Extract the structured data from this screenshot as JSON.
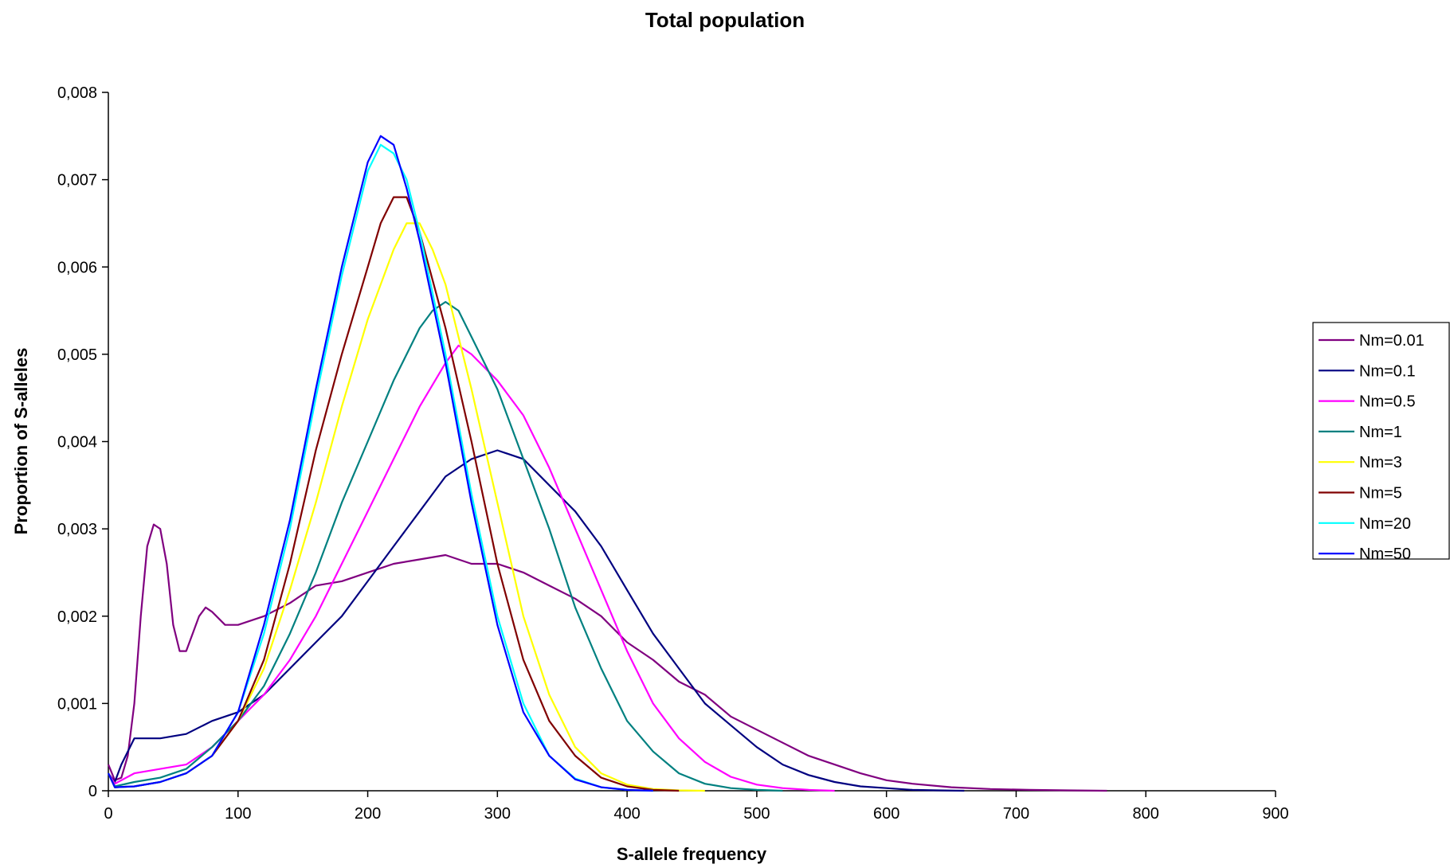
{
  "chart_data": {
    "type": "line",
    "title": "Total population",
    "xlabel": "S-allele frequency",
    "ylabel": "Proportion of S-alleles",
    "xlim": [
      0,
      900
    ],
    "ylim": [
      0,
      0.008
    ],
    "x_ticks": [
      0,
      100,
      200,
      300,
      400,
      500,
      600,
      700,
      800,
      900
    ],
    "x_tick_labels": [
      "0",
      "100",
      "200",
      "300",
      "400",
      "500",
      "600",
      "700",
      "800",
      "900"
    ],
    "y_ticks": [
      0,
      0.001,
      0.002,
      0.003,
      0.004,
      0.005,
      0.006,
      0.007,
      0.008
    ],
    "y_tick_labels": [
      "0",
      "0,001",
      "0,002",
      "0,003",
      "0,004",
      "0,005",
      "0,006",
      "0,007",
      "0,008"
    ],
    "grid": false,
    "legend_position": "right",
    "series": [
      {
        "name": "Nm=0.01",
        "color": "#800080",
        "points": [
          [
            0,
            0.0003
          ],
          [
            5,
            0.00012
          ],
          [
            10,
            0.00015
          ],
          [
            15,
            0.0004
          ],
          [
            20,
            0.001
          ],
          [
            25,
            0.002
          ],
          [
            30,
            0.0028
          ],
          [
            35,
            0.00305
          ],
          [
            40,
            0.003
          ],
          [
            45,
            0.0026
          ],
          [
            50,
            0.0019
          ],
          [
            55,
            0.0016
          ],
          [
            60,
            0.0016
          ],
          [
            65,
            0.0018
          ],
          [
            70,
            0.002
          ],
          [
            75,
            0.0021
          ],
          [
            80,
            0.00205
          ],
          [
            90,
            0.0019
          ],
          [
            100,
            0.0019
          ],
          [
            120,
            0.002
          ],
          [
            140,
            0.00215
          ],
          [
            160,
            0.00235
          ],
          [
            180,
            0.0024
          ],
          [
            200,
            0.0025
          ],
          [
            220,
            0.0026
          ],
          [
            240,
            0.00265
          ],
          [
            260,
            0.0027
          ],
          [
            280,
            0.0026
          ],
          [
            300,
            0.0026
          ],
          [
            320,
            0.0025
          ],
          [
            340,
            0.00235
          ],
          [
            360,
            0.0022
          ],
          [
            380,
            0.002
          ],
          [
            400,
            0.0017
          ],
          [
            420,
            0.0015
          ],
          [
            440,
            0.00125
          ],
          [
            460,
            0.0011
          ],
          [
            480,
            0.00085
          ],
          [
            500,
            0.0007
          ],
          [
            520,
            0.00055
          ],
          [
            540,
            0.0004
          ],
          [
            560,
            0.0003
          ],
          [
            580,
            0.0002
          ],
          [
            600,
            0.00012
          ],
          [
            620,
            8e-05
          ],
          [
            650,
            4e-05
          ],
          [
            680,
            2e-05
          ],
          [
            710,
            1e-05
          ],
          [
            740,
            5e-06
          ],
          [
            770,
            0
          ]
        ]
      },
      {
        "name": "Nm=0.1",
        "color": "#000080",
        "points": [
          [
            0,
            0.0002
          ],
          [
            5,
            0.0001
          ],
          [
            10,
            0.0003
          ],
          [
            20,
            0.0006
          ],
          [
            30,
            0.0006
          ],
          [
            40,
            0.0006
          ],
          [
            60,
            0.00065
          ],
          [
            80,
            0.0008
          ],
          [
            100,
            0.0009
          ],
          [
            120,
            0.0011
          ],
          [
            140,
            0.0014
          ],
          [
            160,
            0.0017
          ],
          [
            180,
            0.002
          ],
          [
            200,
            0.0024
          ],
          [
            220,
            0.0028
          ],
          [
            240,
            0.0032
          ],
          [
            260,
            0.0036
          ],
          [
            280,
            0.0038
          ],
          [
            300,
            0.0039
          ],
          [
            320,
            0.0038
          ],
          [
            340,
            0.0035
          ],
          [
            360,
            0.0032
          ],
          [
            380,
            0.0028
          ],
          [
            400,
            0.0023
          ],
          [
            420,
            0.0018
          ],
          [
            440,
            0.0014
          ],
          [
            460,
            0.001
          ],
          [
            480,
            0.00075
          ],
          [
            500,
            0.0005
          ],
          [
            520,
            0.0003
          ],
          [
            540,
            0.00018
          ],
          [
            560,
            0.0001
          ],
          [
            580,
            5e-05
          ],
          [
            600,
            3e-05
          ],
          [
            620,
            1e-05
          ],
          [
            640,
            5e-06
          ],
          [
            660,
            0
          ]
        ]
      },
      {
        "name": "Nm=0.5",
        "color": "#ff00ff",
        "points": [
          [
            0,
            0.0002
          ],
          [
            5,
            8e-05
          ],
          [
            20,
            0.0002
          ],
          [
            40,
            0.00025
          ],
          [
            60,
            0.0003
          ],
          [
            80,
            0.0005
          ],
          [
            100,
            0.0008
          ],
          [
            120,
            0.0011
          ],
          [
            140,
            0.0015
          ],
          [
            160,
            0.002
          ],
          [
            180,
            0.0026
          ],
          [
            200,
            0.0032
          ],
          [
            220,
            0.0038
          ],
          [
            240,
            0.0044
          ],
          [
            260,
            0.0049
          ],
          [
            270,
            0.0051
          ],
          [
            280,
            0.005
          ],
          [
            300,
            0.0047
          ],
          [
            320,
            0.0043
          ],
          [
            340,
            0.0037
          ],
          [
            360,
            0.003
          ],
          [
            380,
            0.0023
          ],
          [
            400,
            0.0016
          ],
          [
            420,
            0.001
          ],
          [
            440,
            0.0006
          ],
          [
            460,
            0.00033
          ],
          [
            480,
            0.00016
          ],
          [
            500,
            7e-05
          ],
          [
            520,
            3e-05
          ],
          [
            540,
            1e-05
          ],
          [
            560,
            0
          ]
        ]
      },
      {
        "name": "Nm=1",
        "color": "#008080",
        "points": [
          [
            0,
            0.0002
          ],
          [
            5,
            5e-05
          ],
          [
            20,
            0.0001
          ],
          [
            40,
            0.00015
          ],
          [
            60,
            0.00025
          ],
          [
            80,
            0.0005
          ],
          [
            100,
            0.0008
          ],
          [
            120,
            0.0012
          ],
          [
            140,
            0.0018
          ],
          [
            160,
            0.0025
          ],
          [
            180,
            0.0033
          ],
          [
            200,
            0.004
          ],
          [
            220,
            0.0047
          ],
          [
            240,
            0.0053
          ],
          [
            250,
            0.0055
          ],
          [
            260,
            0.0056
          ],
          [
            270,
            0.0055
          ],
          [
            280,
            0.0052
          ],
          [
            300,
            0.0046
          ],
          [
            320,
            0.0038
          ],
          [
            340,
            0.003
          ],
          [
            360,
            0.0021
          ],
          [
            380,
            0.0014
          ],
          [
            400,
            0.0008
          ],
          [
            420,
            0.00045
          ],
          [
            440,
            0.0002
          ],
          [
            460,
            8e-05
          ],
          [
            480,
            3e-05
          ],
          [
            500,
            1e-05
          ],
          [
            520,
            0
          ]
        ]
      },
      {
        "name": "Nm=3",
        "color": "#ffff00",
        "points": [
          [
            0,
            0.0002
          ],
          [
            5,
            4e-05
          ],
          [
            20,
            5e-05
          ],
          [
            40,
            0.0001
          ],
          [
            60,
            0.0002
          ],
          [
            80,
            0.0004
          ],
          [
            100,
            0.0008
          ],
          [
            120,
            0.0014
          ],
          [
            140,
            0.0023
          ],
          [
            160,
            0.0033
          ],
          [
            180,
            0.0044
          ],
          [
            200,
            0.0054
          ],
          [
            220,
            0.0062
          ],
          [
            230,
            0.0065
          ],
          [
            240,
            0.0065
          ],
          [
            250,
            0.0062
          ],
          [
            260,
            0.0058
          ],
          [
            280,
            0.0046
          ],
          [
            300,
            0.0033
          ],
          [
            320,
            0.002
          ],
          [
            340,
            0.0011
          ],
          [
            360,
            0.0005
          ],
          [
            380,
            0.0002
          ],
          [
            400,
            7e-05
          ],
          [
            420,
            2e-05
          ],
          [
            440,
            5e-06
          ],
          [
            460,
            0
          ]
        ]
      },
      {
        "name": "Nm=5",
        "color": "#800000",
        "points": [
          [
            0,
            0.0002
          ],
          [
            5,
            4e-05
          ],
          [
            20,
            5e-05
          ],
          [
            40,
            0.0001
          ],
          [
            60,
            0.0002
          ],
          [
            80,
            0.0004
          ],
          [
            100,
            0.0008
          ],
          [
            120,
            0.0015
          ],
          [
            140,
            0.0026
          ],
          [
            160,
            0.0039
          ],
          [
            180,
            0.005
          ],
          [
            200,
            0.006
          ],
          [
            210,
            0.0065
          ],
          [
            220,
            0.0068
          ],
          [
            230,
            0.0068
          ],
          [
            240,
            0.0064
          ],
          [
            260,
            0.0053
          ],
          [
            280,
            0.004
          ],
          [
            300,
            0.0026
          ],
          [
            320,
            0.0015
          ],
          [
            340,
            0.0008
          ],
          [
            360,
            0.0004
          ],
          [
            380,
            0.00015
          ],
          [
            400,
            5e-05
          ],
          [
            420,
            1e-05
          ],
          [
            440,
            0
          ]
        ]
      },
      {
        "name": "Nm=20",
        "color": "#00ffff",
        "points": [
          [
            0,
            0.0002
          ],
          [
            5,
            4e-05
          ],
          [
            20,
            5e-05
          ],
          [
            40,
            0.0001
          ],
          [
            60,
            0.0002
          ],
          [
            80,
            0.0004
          ],
          [
            100,
            0.0009
          ],
          [
            120,
            0.0018
          ],
          [
            140,
            0.003
          ],
          [
            160,
            0.0045
          ],
          [
            180,
            0.0059
          ],
          [
            200,
            0.0071
          ],
          [
            210,
            0.0074
          ],
          [
            220,
            0.0073
          ],
          [
            230,
            0.007
          ],
          [
            240,
            0.0064
          ],
          [
            260,
            0.005
          ],
          [
            280,
            0.0034
          ],
          [
            300,
            0.002
          ],
          [
            320,
            0.001
          ],
          [
            340,
            0.0004
          ],
          [
            360,
            0.00014
          ],
          [
            380,
            4e-05
          ],
          [
            400,
            1e-05
          ],
          [
            420,
            0
          ]
        ]
      },
      {
        "name": "Nm=50",
        "color": "#0000ff",
        "points": [
          [
            0,
            0.0002
          ],
          [
            5,
            4e-05
          ],
          [
            20,
            5e-05
          ],
          [
            40,
            0.0001
          ],
          [
            60,
            0.0002
          ],
          [
            80,
            0.0004
          ],
          [
            100,
            0.0009
          ],
          [
            120,
            0.0019
          ],
          [
            140,
            0.0031
          ],
          [
            160,
            0.0046
          ],
          [
            180,
            0.006
          ],
          [
            200,
            0.0072
          ],
          [
            210,
            0.0075
          ],
          [
            220,
            0.0074
          ],
          [
            230,
            0.0069
          ],
          [
            240,
            0.0063
          ],
          [
            260,
            0.0049
          ],
          [
            280,
            0.0033
          ],
          [
            300,
            0.0019
          ],
          [
            320,
            0.0009
          ],
          [
            340,
            0.0004
          ],
          [
            360,
            0.00013
          ],
          [
            380,
            4e-05
          ],
          [
            400,
            1e-05
          ],
          [
            420,
            0
          ]
        ]
      }
    ]
  }
}
